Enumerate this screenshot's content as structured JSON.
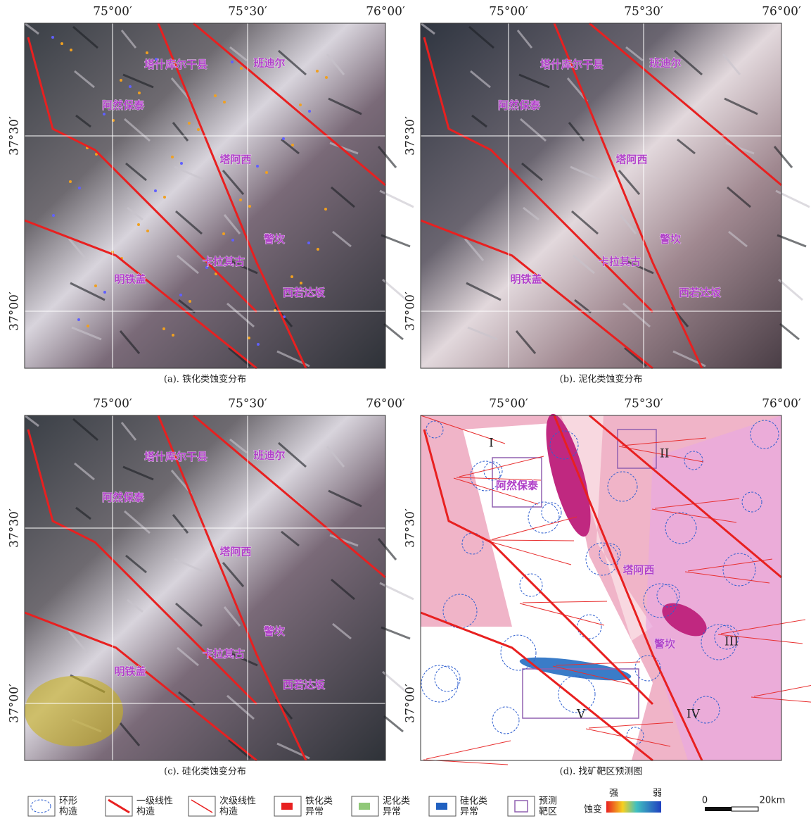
{
  "lon_labels": [
    "75°00′",
    "75°30′",
    "76°00′"
  ],
  "lat_labels": [
    "37°30′",
    "37°00′"
  ],
  "panels": [
    {
      "caption": "(a). 铁化类蚀变分布",
      "places": [
        "塔什库尔干县",
        "班迪尔",
        "阿然保泰",
        "塔阿西",
        "警坎",
        "卡拉其古",
        "明铁盖",
        "西若达坂"
      ]
    },
    {
      "caption": "(b). 泥化类蚀变分布",
      "places": [
        "塔什库尔干县",
        "班迪尔",
        "阿然保泰",
        "塔阿西",
        "警坎",
        "卡拉其古",
        "明铁盖",
        "西若达坂"
      ]
    },
    {
      "caption": "(c). 硅化类蚀变分布",
      "places": [
        "塔什库尔干县",
        "班迪尔",
        "阿然保泰",
        "塔阿西",
        "警坎",
        "卡拉其古",
        "明铁盖",
        "西若达坂"
      ]
    },
    {
      "caption": "(d). 找矿靶区预测图",
      "places": [
        "阿然保泰",
        "塔阿西",
        "警坎"
      ],
      "zones": [
        "I",
        "II",
        "III",
        "IV",
        "V"
      ]
    }
  ],
  "legend": [
    {
      "lines": [
        "环形",
        "构造"
      ]
    },
    {
      "lines": [
        "一级线性",
        "构造"
      ]
    },
    {
      "lines": [
        "次级线性",
        "构造"
      ]
    },
    {
      "lines": [
        "铁化类",
        "异常"
      ]
    },
    {
      "lines": [
        "泥化类",
        "异常"
      ]
    },
    {
      "lines": [
        "硅化类",
        "异常"
      ]
    },
    {
      "lines": [
        "预测",
        "靶区"
      ]
    }
  ],
  "alteration_legend": {
    "title": "蚀变",
    "strong": "强",
    "weak": "弱"
  },
  "scale_bar": {
    "start": "0",
    "end": "20km"
  }
}
